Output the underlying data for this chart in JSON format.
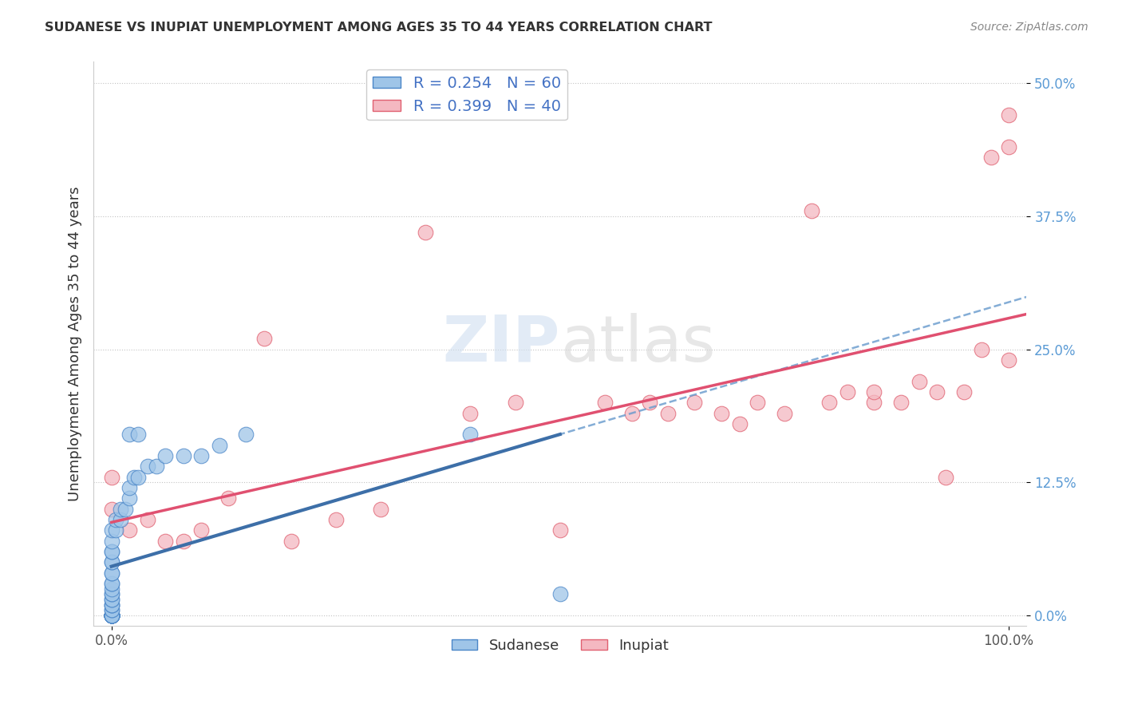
{
  "title": "SUDANESE VS INUPIAT UNEMPLOYMENT AMONG AGES 35 TO 44 YEARS CORRELATION CHART",
  "source": "Source: ZipAtlas.com",
  "ylabel": "Unemployment Among Ages 35 to 44 years",
  "xlim": [
    -0.02,
    1.02
  ],
  "ylim": [
    -0.01,
    0.52
  ],
  "yticks": [
    0,
    0.125,
    0.25,
    0.375,
    0.5
  ],
  "ytick_labels": [
    "0.0%",
    "12.5%",
    "25.0%",
    "37.5%",
    "50.0%"
  ],
  "xtick_labels_left": [
    "0.0%"
  ],
  "xtick_labels_right": [
    "100.0%"
  ],
  "sudanese_color": "#9fc5e8",
  "sudanese_edge_color": "#4a86c8",
  "inupiat_color": "#f4b8c1",
  "inupiat_edge_color": "#e06070",
  "sudanese_line_color": "#3d6fa8",
  "inupiat_line_color": "#e05070",
  "sudanese_dash_color": "#6699cc",
  "sudanese_R": 0.254,
  "sudanese_N": 60,
  "inupiat_R": 0.399,
  "inupiat_N": 40,
  "watermark_zip": "ZIP",
  "watermark_atlas": "atlas",
  "background_color": "#ffffff",
  "sudanese_x": [
    0.0,
    0.0,
    0.0,
    0.0,
    0.0,
    0.0,
    0.0,
    0.0,
    0.0,
    0.0,
    0.0,
    0.0,
    0.0,
    0.0,
    0.0,
    0.0,
    0.0,
    0.0,
    0.0,
    0.0,
    0.0,
    0.0,
    0.0,
    0.0,
    0.0,
    0.0,
    0.0,
    0.0,
    0.0,
    0.0,
    0.0,
    0.0,
    0.0,
    0.0,
    0.0,
    0.0,
    0.0,
    0.0,
    0.0,
    0.0,
    0.005,
    0.005,
    0.01,
    0.01,
    0.015,
    0.02,
    0.02,
    0.025,
    0.03,
    0.04,
    0.05,
    0.06,
    0.08,
    0.1,
    0.12,
    0.15,
    0.02,
    0.03,
    0.4,
    0.5
  ],
  "sudanese_y": [
    0.0,
    0.0,
    0.0,
    0.0,
    0.0,
    0.0,
    0.0,
    0.0,
    0.0,
    0.0,
    0.0,
    0.0,
    0.0,
    0.0,
    0.0,
    0.0,
    0.0,
    0.0,
    0.0,
    0.0,
    0.005,
    0.005,
    0.01,
    0.01,
    0.01,
    0.015,
    0.015,
    0.02,
    0.02,
    0.025,
    0.03,
    0.03,
    0.04,
    0.04,
    0.05,
    0.05,
    0.06,
    0.06,
    0.07,
    0.08,
    0.08,
    0.09,
    0.09,
    0.1,
    0.1,
    0.11,
    0.12,
    0.13,
    0.13,
    0.14,
    0.14,
    0.15,
    0.15,
    0.15,
    0.16,
    0.17,
    0.17,
    0.17,
    0.17,
    0.02
  ],
  "inupiat_x": [
    0.0,
    0.0,
    0.02,
    0.04,
    0.06,
    0.08,
    0.1,
    0.13,
    0.17,
    0.2,
    0.25,
    0.3,
    0.35,
    0.4,
    0.45,
    0.5,
    0.55,
    0.58,
    0.6,
    0.62,
    0.65,
    0.68,
    0.7,
    0.72,
    0.75,
    0.78,
    0.8,
    0.82,
    0.85,
    0.85,
    0.88,
    0.9,
    0.92,
    0.93,
    0.95,
    0.97,
    0.98,
    1.0,
    1.0,
    1.0
  ],
  "inupiat_y": [
    0.1,
    0.13,
    0.08,
    0.09,
    0.07,
    0.07,
    0.08,
    0.11,
    0.26,
    0.07,
    0.09,
    0.1,
    0.36,
    0.19,
    0.2,
    0.08,
    0.2,
    0.19,
    0.2,
    0.19,
    0.2,
    0.19,
    0.18,
    0.2,
    0.19,
    0.38,
    0.2,
    0.21,
    0.2,
    0.21,
    0.2,
    0.22,
    0.21,
    0.13,
    0.21,
    0.25,
    0.43,
    0.24,
    0.44,
    0.47
  ]
}
